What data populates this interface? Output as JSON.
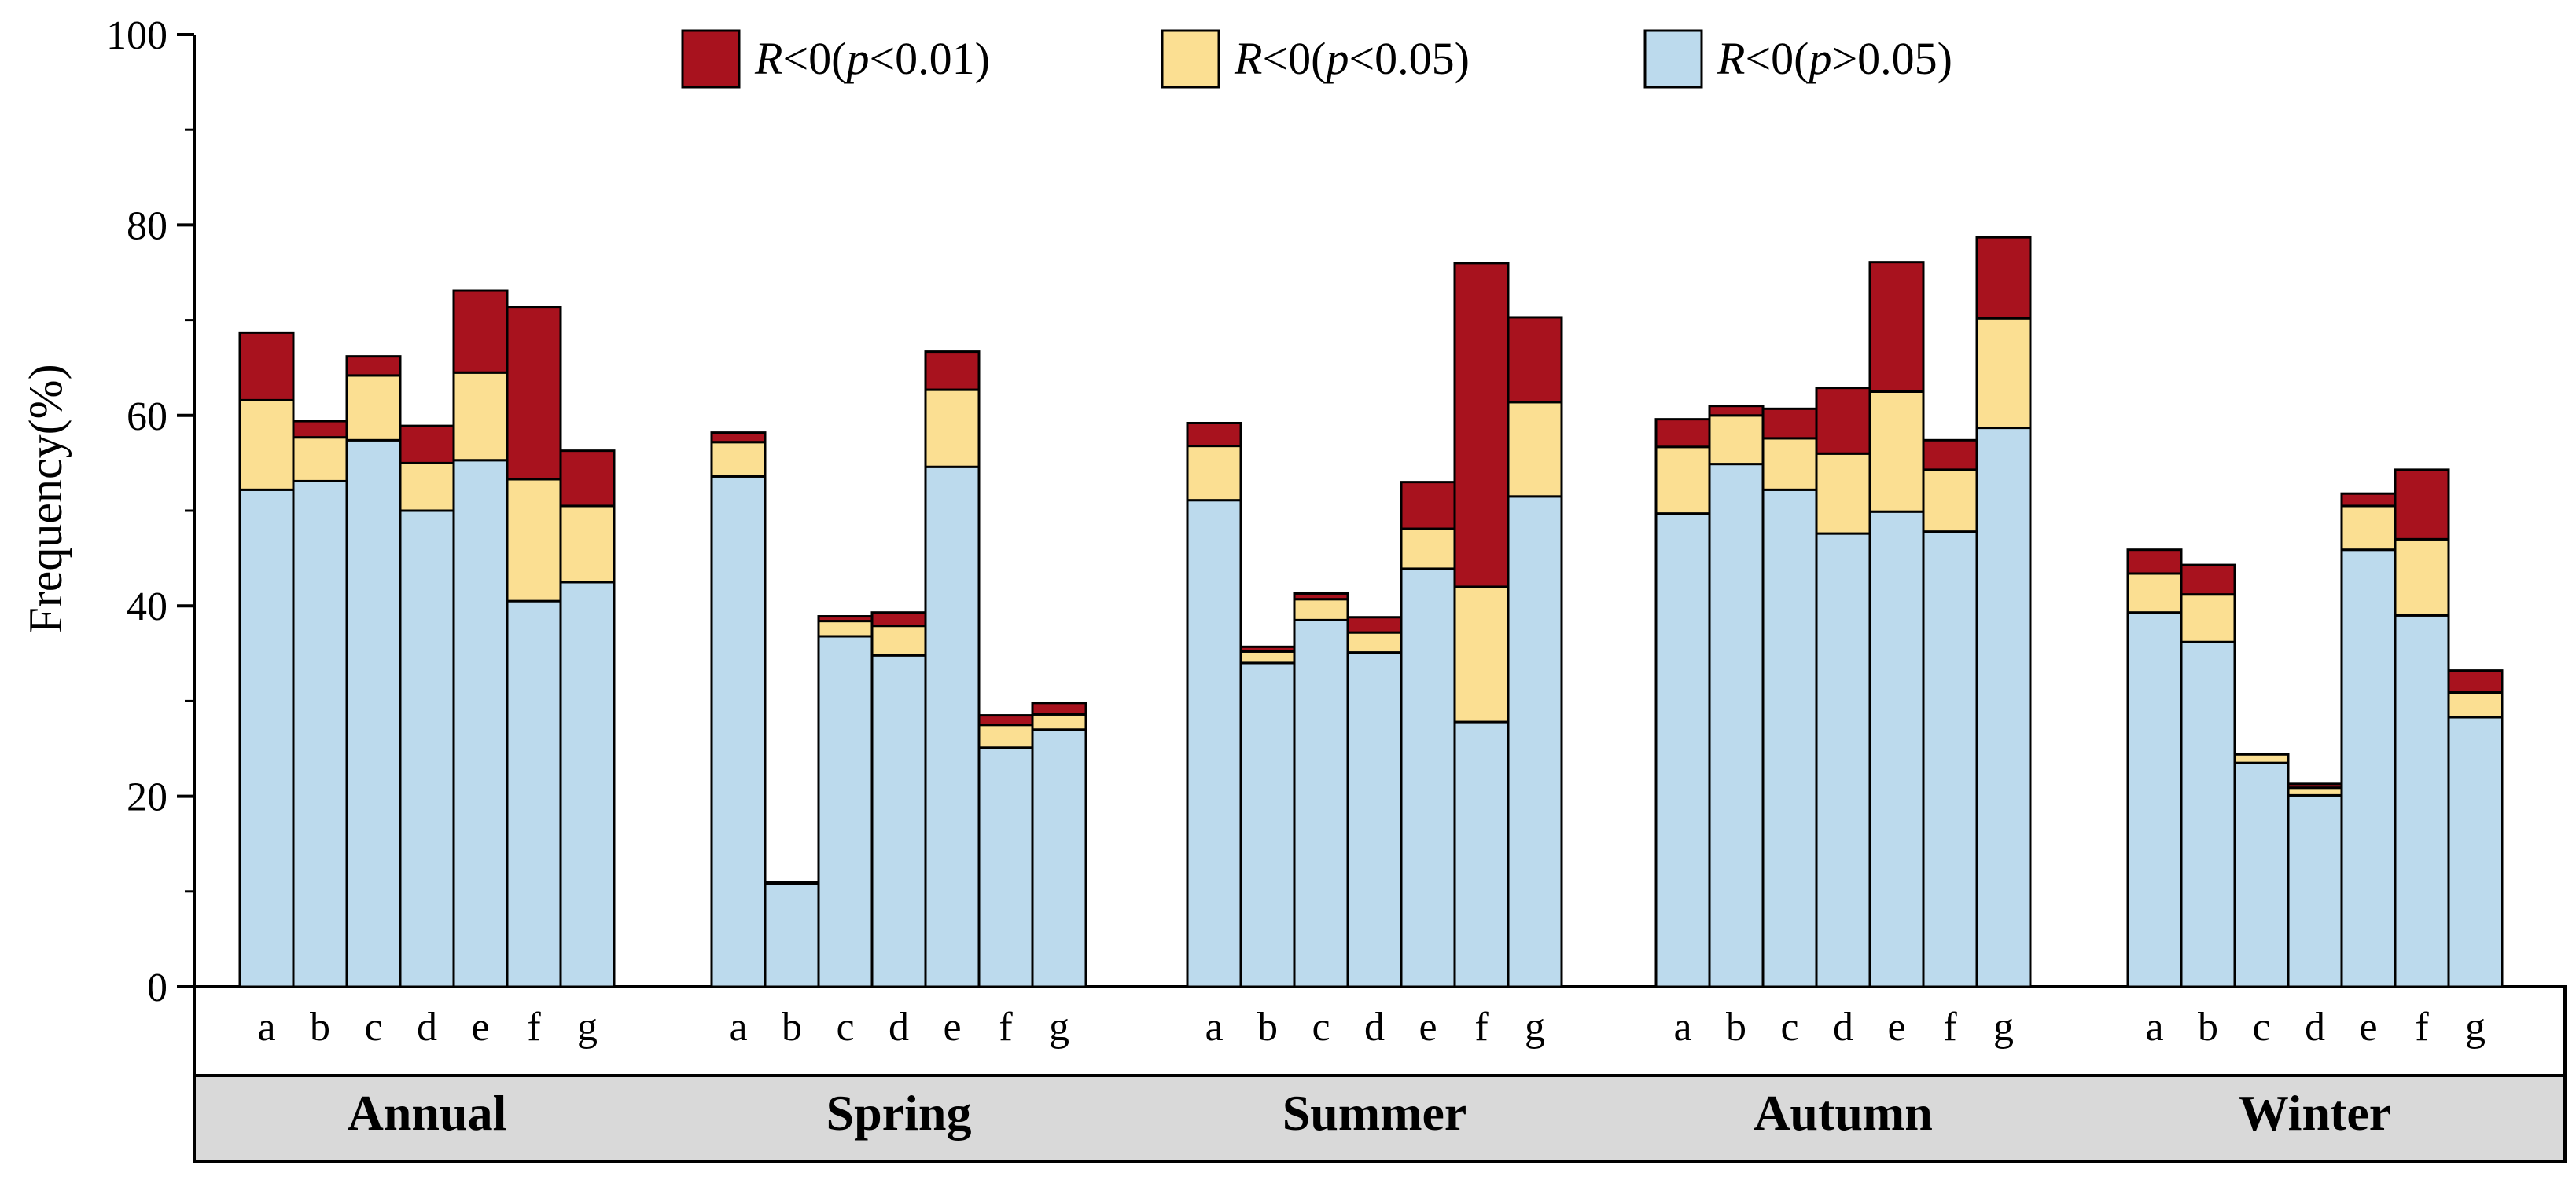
{
  "chart_data": {
    "type": "bar",
    "stacked": true,
    "title": "",
    "xlabel": "",
    "ylabel": "Frequency(%)",
    "ylim": [
      0,
      100
    ],
    "yticks": [
      0,
      20,
      40,
      60,
      80,
      100
    ],
    "legend_position": "top-center",
    "categories": [
      "a",
      "b",
      "c",
      "d",
      "e",
      "f",
      "g"
    ],
    "groups": [
      "Annual",
      "Spring",
      "Summer",
      "Autumn",
      "Winter"
    ],
    "series": [
      {
        "name": "R<0(p>0.05)",
        "legend_prefix": "R",
        "legend_mid": "<0(",
        "legend_p": "p",
        "legend_suffix": ">0.05)",
        "color": "#bcdaed",
        "values": [
          [
            52.2,
            53.1,
            57.4,
            50.0,
            55.3,
            40.5,
            42.5
          ],
          [
            53.6,
            10.8,
            36.8,
            34.8,
            54.6,
            25.1,
            27.0
          ],
          [
            51.1,
            34.0,
            38.5,
            35.1,
            43.9,
            27.8,
            51.5
          ],
          [
            49.7,
            54.9,
            52.2,
            47.6,
            49.9,
            47.8,
            58.7
          ],
          [
            39.3,
            36.2,
            23.5,
            20.1,
            45.9,
            39.0,
            28.3
          ]
        ]
      },
      {
        "name": "R<0(p<0.05)",
        "legend_prefix": "R",
        "legend_mid": "<0(",
        "legend_p": "p",
        "legend_suffix": "<0.05)",
        "color": "#fbdf92",
        "values": [
          [
            9.4,
            4.6,
            6.8,
            5.0,
            9.2,
            12.8,
            8.0
          ],
          [
            3.6,
            0.0,
            1.6,
            3.1,
            8.1,
            2.4,
            1.6
          ],
          [
            5.7,
            1.2,
            2.2,
            2.1,
            4.2,
            14.2,
            9.9
          ],
          [
            7.0,
            5.1,
            5.4,
            8.4,
            12.6,
            6.5,
            11.5
          ],
          [
            4.1,
            5.0,
            0.9,
            0.8,
            4.6,
            8.0,
            2.6
          ]
        ]
      },
      {
        "name": "R<0(p<0.01)",
        "legend_prefix": "R",
        "legend_mid": "<0(",
        "legend_p": "p",
        "legend_suffix": "<0.01)",
        "color": "#a8121e",
        "values": [
          [
            7.1,
            1.7,
            2.0,
            3.9,
            8.6,
            18.1,
            5.8
          ],
          [
            1.0,
            0.2,
            0.5,
            1.4,
            4.0,
            1.0,
            1.2
          ],
          [
            2.4,
            0.5,
            0.6,
            1.6,
            4.9,
            34.0,
            8.9
          ],
          [
            2.9,
            1.0,
            3.1,
            6.9,
            13.6,
            3.1,
            8.5
          ],
          [
            2.5,
            3.1,
            0.0,
            0.4,
            1.3,
            7.3,
            2.3
          ]
        ]
      }
    ]
  }
}
